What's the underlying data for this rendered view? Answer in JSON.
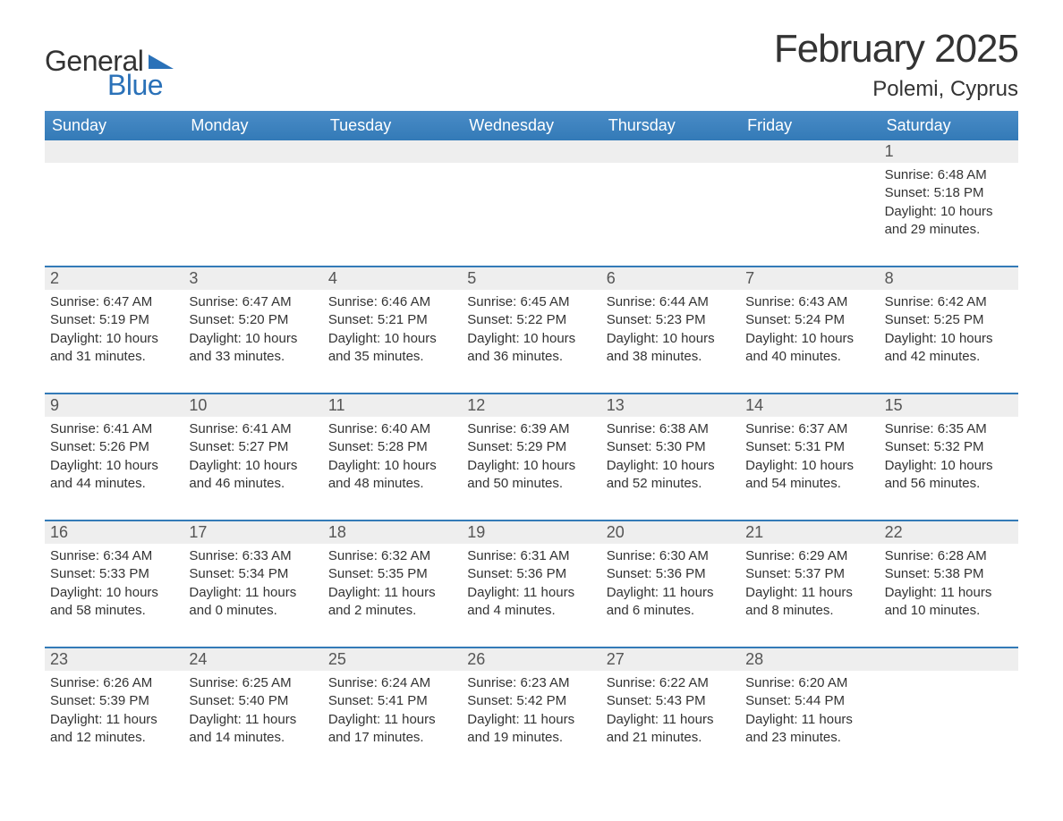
{
  "brand": {
    "word1": "General",
    "word2": "Blue",
    "accent_color": "#2a71b8"
  },
  "title": "February 2025",
  "location": "Polemi, Cyprus",
  "colors": {
    "header_bg": "#337ab7",
    "header_text": "#ffffff",
    "daynum_bg": "#eeeeee",
    "week_border": "#337ab7",
    "body_text": "#333333",
    "background": "#ffffff"
  },
  "fonts": {
    "title_size_pt": 44,
    "location_size_pt": 24,
    "weekday_size_pt": 18,
    "body_size_pt": 15
  },
  "weekdays": [
    "Sunday",
    "Monday",
    "Tuesday",
    "Wednesday",
    "Thursday",
    "Friday",
    "Saturday"
  ],
  "weeks": [
    [
      null,
      null,
      null,
      null,
      null,
      null,
      {
        "n": "1",
        "sunrise": "Sunrise: 6:48 AM",
        "sunset": "Sunset: 5:18 PM",
        "dl1": "Daylight: 10 hours",
        "dl2": "and 29 minutes."
      }
    ],
    [
      {
        "n": "2",
        "sunrise": "Sunrise: 6:47 AM",
        "sunset": "Sunset: 5:19 PM",
        "dl1": "Daylight: 10 hours",
        "dl2": "and 31 minutes."
      },
      {
        "n": "3",
        "sunrise": "Sunrise: 6:47 AM",
        "sunset": "Sunset: 5:20 PM",
        "dl1": "Daylight: 10 hours",
        "dl2": "and 33 minutes."
      },
      {
        "n": "4",
        "sunrise": "Sunrise: 6:46 AM",
        "sunset": "Sunset: 5:21 PM",
        "dl1": "Daylight: 10 hours",
        "dl2": "and 35 minutes."
      },
      {
        "n": "5",
        "sunrise": "Sunrise: 6:45 AM",
        "sunset": "Sunset: 5:22 PM",
        "dl1": "Daylight: 10 hours",
        "dl2": "and 36 minutes."
      },
      {
        "n": "6",
        "sunrise": "Sunrise: 6:44 AM",
        "sunset": "Sunset: 5:23 PM",
        "dl1": "Daylight: 10 hours",
        "dl2": "and 38 minutes."
      },
      {
        "n": "7",
        "sunrise": "Sunrise: 6:43 AM",
        "sunset": "Sunset: 5:24 PM",
        "dl1": "Daylight: 10 hours",
        "dl2": "and 40 minutes."
      },
      {
        "n": "8",
        "sunrise": "Sunrise: 6:42 AM",
        "sunset": "Sunset: 5:25 PM",
        "dl1": "Daylight: 10 hours",
        "dl2": "and 42 minutes."
      }
    ],
    [
      {
        "n": "9",
        "sunrise": "Sunrise: 6:41 AM",
        "sunset": "Sunset: 5:26 PM",
        "dl1": "Daylight: 10 hours",
        "dl2": "and 44 minutes."
      },
      {
        "n": "10",
        "sunrise": "Sunrise: 6:41 AM",
        "sunset": "Sunset: 5:27 PM",
        "dl1": "Daylight: 10 hours",
        "dl2": "and 46 minutes."
      },
      {
        "n": "11",
        "sunrise": "Sunrise: 6:40 AM",
        "sunset": "Sunset: 5:28 PM",
        "dl1": "Daylight: 10 hours",
        "dl2": "and 48 minutes."
      },
      {
        "n": "12",
        "sunrise": "Sunrise: 6:39 AM",
        "sunset": "Sunset: 5:29 PM",
        "dl1": "Daylight: 10 hours",
        "dl2": "and 50 minutes."
      },
      {
        "n": "13",
        "sunrise": "Sunrise: 6:38 AM",
        "sunset": "Sunset: 5:30 PM",
        "dl1": "Daylight: 10 hours",
        "dl2": "and 52 minutes."
      },
      {
        "n": "14",
        "sunrise": "Sunrise: 6:37 AM",
        "sunset": "Sunset: 5:31 PM",
        "dl1": "Daylight: 10 hours",
        "dl2": "and 54 minutes."
      },
      {
        "n": "15",
        "sunrise": "Sunrise: 6:35 AM",
        "sunset": "Sunset: 5:32 PM",
        "dl1": "Daylight: 10 hours",
        "dl2": "and 56 minutes."
      }
    ],
    [
      {
        "n": "16",
        "sunrise": "Sunrise: 6:34 AM",
        "sunset": "Sunset: 5:33 PM",
        "dl1": "Daylight: 10 hours",
        "dl2": "and 58 minutes."
      },
      {
        "n": "17",
        "sunrise": "Sunrise: 6:33 AM",
        "sunset": "Sunset: 5:34 PM",
        "dl1": "Daylight: 11 hours",
        "dl2": "and 0 minutes."
      },
      {
        "n": "18",
        "sunrise": "Sunrise: 6:32 AM",
        "sunset": "Sunset: 5:35 PM",
        "dl1": "Daylight: 11 hours",
        "dl2": "and 2 minutes."
      },
      {
        "n": "19",
        "sunrise": "Sunrise: 6:31 AM",
        "sunset": "Sunset: 5:36 PM",
        "dl1": "Daylight: 11 hours",
        "dl2": "and 4 minutes."
      },
      {
        "n": "20",
        "sunrise": "Sunrise: 6:30 AM",
        "sunset": "Sunset: 5:36 PM",
        "dl1": "Daylight: 11 hours",
        "dl2": "and 6 minutes."
      },
      {
        "n": "21",
        "sunrise": "Sunrise: 6:29 AM",
        "sunset": "Sunset: 5:37 PM",
        "dl1": "Daylight: 11 hours",
        "dl2": "and 8 minutes."
      },
      {
        "n": "22",
        "sunrise": "Sunrise: 6:28 AM",
        "sunset": "Sunset: 5:38 PM",
        "dl1": "Daylight: 11 hours",
        "dl2": "and 10 minutes."
      }
    ],
    [
      {
        "n": "23",
        "sunrise": "Sunrise: 6:26 AM",
        "sunset": "Sunset: 5:39 PM",
        "dl1": "Daylight: 11 hours",
        "dl2": "and 12 minutes."
      },
      {
        "n": "24",
        "sunrise": "Sunrise: 6:25 AM",
        "sunset": "Sunset: 5:40 PM",
        "dl1": "Daylight: 11 hours",
        "dl2": "and 14 minutes."
      },
      {
        "n": "25",
        "sunrise": "Sunrise: 6:24 AM",
        "sunset": "Sunset: 5:41 PM",
        "dl1": "Daylight: 11 hours",
        "dl2": "and 17 minutes."
      },
      {
        "n": "26",
        "sunrise": "Sunrise: 6:23 AM",
        "sunset": "Sunset: 5:42 PM",
        "dl1": "Daylight: 11 hours",
        "dl2": "and 19 minutes."
      },
      {
        "n": "27",
        "sunrise": "Sunrise: 6:22 AM",
        "sunset": "Sunset: 5:43 PM",
        "dl1": "Daylight: 11 hours",
        "dl2": "and 21 minutes."
      },
      {
        "n": "28",
        "sunrise": "Sunrise: 6:20 AM",
        "sunset": "Sunset: 5:44 PM",
        "dl1": "Daylight: 11 hours",
        "dl2": "and 23 minutes."
      },
      null
    ]
  ]
}
